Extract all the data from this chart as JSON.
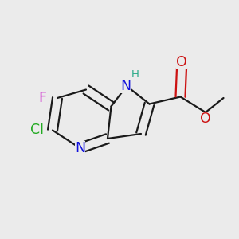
{
  "background_color": "#ebebeb",
  "bond_color": "#1a1a1a",
  "bond_width": 1.6,
  "figsize": [
    3.0,
    3.0
  ],
  "dpi": 100,
  "atoms": {
    "Nb": {
      "label": "N",
      "color": "#1010dd",
      "fontsize": 12.5
    },
    "N1": {
      "label": "N",
      "color": "#1010dd",
      "fontsize": 12.5
    },
    "H": {
      "label": "H",
      "color": "#2aaa88",
      "fontsize": 9.5
    },
    "Cl": {
      "label": "Cl",
      "color": "#22aa22",
      "fontsize": 12.5
    },
    "F": {
      "label": "F",
      "color": "#cc22cc",
      "fontsize": 12.5
    },
    "O1": {
      "label": "O",
      "color": "#cc1111",
      "fontsize": 12.5
    },
    "O2": {
      "label": "O",
      "color": "#cc1111",
      "fontsize": 12.5
    }
  }
}
